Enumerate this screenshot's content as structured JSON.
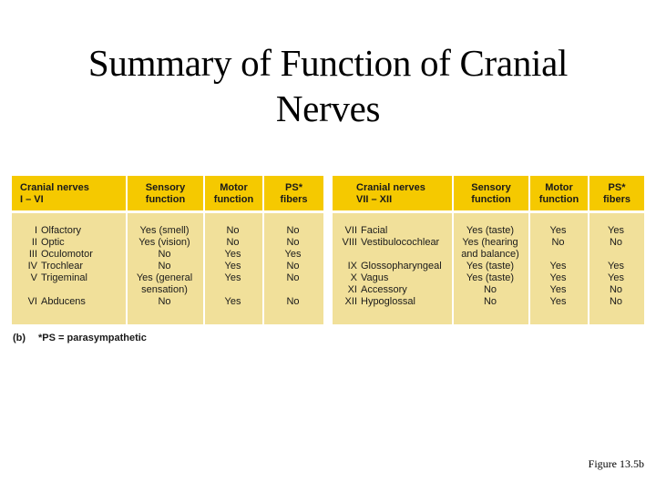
{
  "title": {
    "line1": "Summary of Function of Cranial",
    "line2": "Nerves"
  },
  "left_table": {
    "headers": {
      "nerves_line1": "Cranial nerves",
      "nerves_line2": "I – VI",
      "sensory_line1": "Sensory",
      "sensory_line2": "function",
      "motor_line1": "Motor",
      "motor_line2": "function",
      "ps_line1": "PS*",
      "ps_line2": "fibers"
    },
    "rows": [
      {
        "num": "I",
        "name": "Olfactory",
        "sensory": "Yes (smell)",
        "sensory2": "",
        "motor": "No",
        "ps": "No"
      },
      {
        "num": "II",
        "name": "Optic",
        "sensory": "Yes (vision)",
        "sensory2": "",
        "motor": "No",
        "ps": "No"
      },
      {
        "num": "III",
        "name": "Oculomotor",
        "sensory": "No",
        "sensory2": "",
        "motor": "Yes",
        "ps": "Yes"
      },
      {
        "num": "IV",
        "name": "Trochlear",
        "sensory": "No",
        "sensory2": "",
        "motor": "Yes",
        "ps": "No"
      },
      {
        "num": "V",
        "name": "Trigeminal",
        "sensory": "Yes (general",
        "sensory2": "sensation)",
        "motor": "Yes",
        "ps": "No"
      },
      {
        "num": "VI",
        "name": "Abducens",
        "sensory": "No",
        "sensory2": "",
        "motor": "Yes",
        "ps": "No"
      }
    ]
  },
  "right_table": {
    "headers": {
      "nerves_line1": "Cranial nerves",
      "nerves_line2": "VII – XII",
      "sensory_line1": "Sensory",
      "sensory_line2": "function",
      "motor_line1": "Motor",
      "motor_line2": "function",
      "ps_line1": "PS*",
      "ps_line2": "fibers"
    },
    "rows": [
      {
        "num": "VII",
        "name": "Facial",
        "sensory": "Yes (taste)",
        "sensory2": "",
        "motor": "Yes",
        "ps": "Yes"
      },
      {
        "num": "VIII",
        "name": "Vestibulocochlear",
        "sensory": "Yes (hearing",
        "sensory2": "and balance)",
        "motor": "No",
        "ps": "No"
      },
      {
        "num": "IX",
        "name": "Glossopharyngeal",
        "sensory": "Yes (taste)",
        "sensory2": "",
        "motor": "Yes",
        "ps": "Yes"
      },
      {
        "num": "X",
        "name": "Vagus",
        "sensory": "Yes (taste)",
        "sensory2": "",
        "motor": "Yes",
        "ps": "Yes"
      },
      {
        "num": "XI",
        "name": "Accessory",
        "sensory": "No",
        "sensory2": "",
        "motor": "Yes",
        "ps": "No"
      },
      {
        "num": "XII",
        "name": "Hypoglossal",
        "sensory": "No",
        "sensory2": "",
        "motor": "Yes",
        "ps": "No"
      }
    ]
  },
  "footnote": {
    "label": "(b)",
    "text": "*PS = parasympathetic"
  },
  "caption": "Figure 13.5b",
  "colors": {
    "header_bg": "#f5c900",
    "body_bg": "#f1e09a"
  }
}
